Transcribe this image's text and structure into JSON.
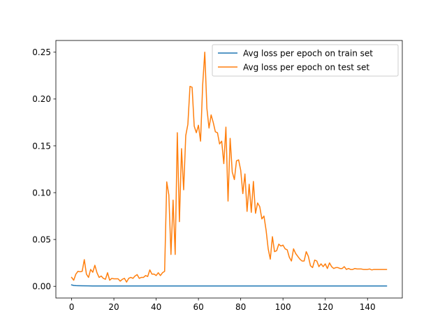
{
  "chart_data": {
    "type": "line",
    "title": "",
    "xlabel": "",
    "ylabel": "",
    "xlim": [
      -7.45,
      156.45
    ],
    "ylim": [
      -0.0125,
      0.2625
    ],
    "x_ticks": [
      0,
      20,
      40,
      60,
      80,
      100,
      120,
      140
    ],
    "y_ticks": [
      0.0,
      0.05,
      0.1,
      0.15,
      0.2,
      0.25
    ],
    "y_tick_labels": [
      "0.00",
      "0.05",
      "0.10",
      "0.15",
      "0.20",
      "0.25"
    ],
    "grid": false,
    "legend_position": "top-right",
    "series": [
      {
        "name": "Avg loss per epoch on train set",
        "color": "#1f77b4",
        "x": [
          0,
          1,
          2,
          3,
          5,
          10,
          20,
          40,
          60,
          80,
          100,
          120,
          140,
          149
        ],
        "y": [
          0.0015,
          0.0009,
          0.0007,
          0.0006,
          0.0005,
          0.0004,
          0.0004,
          0.0004,
          0.0004,
          0.0004,
          0.0004,
          0.0004,
          0.0004,
          0.0004
        ]
      },
      {
        "name": "Avg loss per epoch on test set",
        "color": "#ff7f0e",
        "x": [
          0,
          1,
          2,
          3,
          4,
          5,
          6,
          7,
          8,
          9,
          10,
          11,
          12,
          13,
          14,
          15,
          16,
          17,
          18,
          19,
          20,
          21,
          22,
          23,
          24,
          25,
          26,
          27,
          28,
          29,
          30,
          31,
          32,
          33,
          34,
          35,
          36,
          37,
          38,
          39,
          40,
          41,
          42,
          43,
          44,
          45,
          46,
          47,
          48,
          49,
          50,
          51,
          52,
          53,
          54,
          55,
          56,
          57,
          58,
          59,
          60,
          61,
          62,
          63,
          64,
          65,
          66,
          67,
          68,
          69,
          70,
          71,
          72,
          73,
          74,
          75,
          76,
          77,
          78,
          79,
          80,
          81,
          82,
          83,
          84,
          85,
          86,
          87,
          88,
          89,
          90,
          91,
          92,
          93,
          94,
          95,
          96,
          97,
          98,
          99,
          100,
          101,
          102,
          103,
          104,
          105,
          106,
          107,
          108,
          109,
          110,
          111,
          112,
          113,
          114,
          115,
          116,
          117,
          118,
          119,
          120,
          121,
          122,
          123,
          124,
          125,
          126,
          127,
          128,
          129,
          130,
          131,
          132,
          133,
          134,
          135,
          136,
          137,
          138,
          139,
          140,
          141,
          142,
          143,
          144,
          145,
          146,
          147,
          148,
          149
        ],
        "y": [
          0.0095,
          0.0065,
          0.013,
          0.016,
          0.0155,
          0.016,
          0.0285,
          0.013,
          0.0095,
          0.018,
          0.015,
          0.0225,
          0.0145,
          0.0095,
          0.011,
          0.0085,
          0.0075,
          0.0145,
          0.0065,
          0.0085,
          0.008,
          0.008,
          0.008,
          0.0055,
          0.0075,
          0.0085,
          0.0045,
          0.0085,
          0.0095,
          0.0085,
          0.011,
          0.0125,
          0.0085,
          0.0095,
          0.0095,
          0.0115,
          0.0105,
          0.0175,
          0.013,
          0.013,
          0.0115,
          0.0145,
          0.0115,
          0.0145,
          0.016,
          0.1115,
          0.0975,
          0.034,
          0.092,
          0.034,
          0.164,
          0.069,
          0.147,
          0.103,
          0.161,
          0.173,
          0.2135,
          0.2125,
          0.171,
          0.164,
          0.172,
          0.155,
          0.215,
          0.25,
          0.19,
          0.169,
          0.183,
          0.175,
          0.165,
          0.164,
          0.152,
          0.155,
          0.131,
          0.17,
          0.091,
          0.158,
          0.122,
          0.114,
          0.134,
          0.135,
          0.124,
          0.099,
          0.12,
          0.08,
          0.109,
          0.079,
          0.112,
          0.078,
          0.089,
          0.085,
          0.072,
          0.075,
          0.06,
          0.04,
          0.029,
          0.053,
          0.037,
          0.038,
          0.045,
          0.043,
          0.044,
          0.04,
          0.039,
          0.031,
          0.027,
          0.04,
          0.035,
          0.032,
          0.029,
          0.027,
          0.027,
          0.037,
          0.032,
          0.022,
          0.02,
          0.028,
          0.027,
          0.021,
          0.024,
          0.021,
          0.024,
          0.019,
          0.025,
          0.021,
          0.019,
          0.02,
          0.02,
          0.019,
          0.019,
          0.021,
          0.018,
          0.019,
          0.018,
          0.018,
          0.019,
          0.0185,
          0.0185,
          0.0185,
          0.018,
          0.018,
          0.018,
          0.0185,
          0.0175,
          0.018,
          0.018,
          0.018,
          0.018,
          0.018,
          0.018,
          0.018
        ]
      }
    ]
  }
}
